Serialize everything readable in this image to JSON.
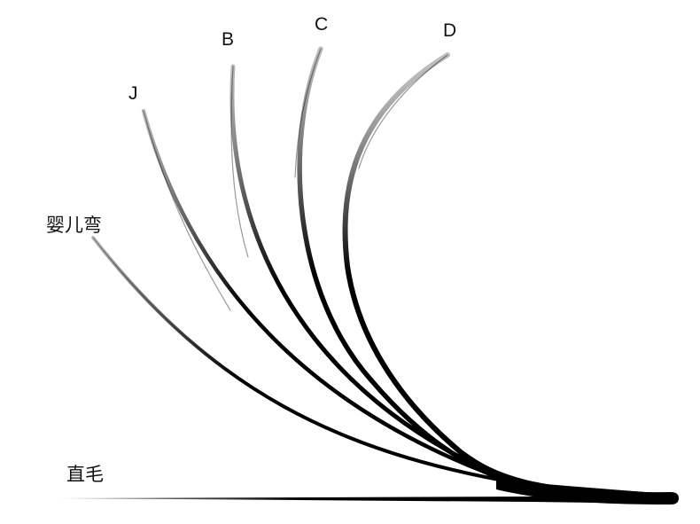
{
  "labels": {
    "straight": "直毛",
    "baby": "婴儿弯",
    "j": "J",
    "b": "B",
    "c": "C",
    "d": "D"
  },
  "colors": {
    "background": "#ffffff",
    "stroke": "#000000",
    "text": "#111111"
  }
}
